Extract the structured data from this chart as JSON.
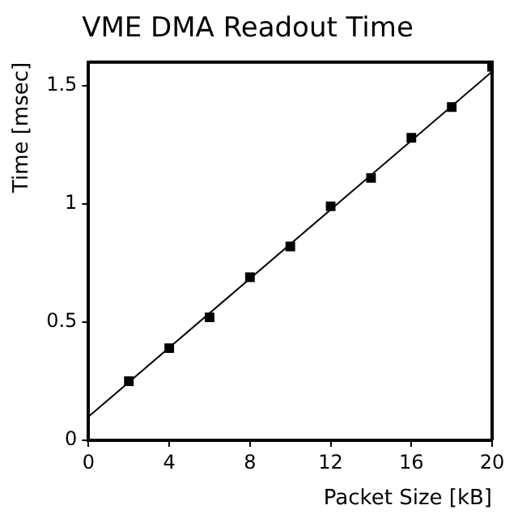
{
  "chart_data": {
    "type": "scatter",
    "title": "VME DMA Readout Time",
    "xlabel": "Packet Size [kB]",
    "ylabel": "Time [msec]",
    "xlim": [
      0,
      20
    ],
    "ylim": [
      0,
      1.6
    ],
    "xticks": [
      0,
      4,
      8,
      12,
      16,
      20
    ],
    "yticks": [
      0,
      0.5,
      1,
      1.5
    ],
    "grid": false,
    "legend": false,
    "series": [
      {
        "color": "#000000",
        "marker": "square",
        "x": [
          2,
          4,
          6,
          8,
          10,
          12,
          14,
          16,
          18,
          20
        ],
        "values": [
          0.25,
          0.39,
          0.52,
          0.69,
          0.82,
          0.99,
          1.11,
          1.28,
          1.41,
          1.58
        ]
      },
      {
        "type": "line",
        "color": "#000000",
        "marker": "none",
        "x": [
          0,
          20
        ],
        "values": [
          0.1,
          1.56
        ]
      }
    ]
  }
}
